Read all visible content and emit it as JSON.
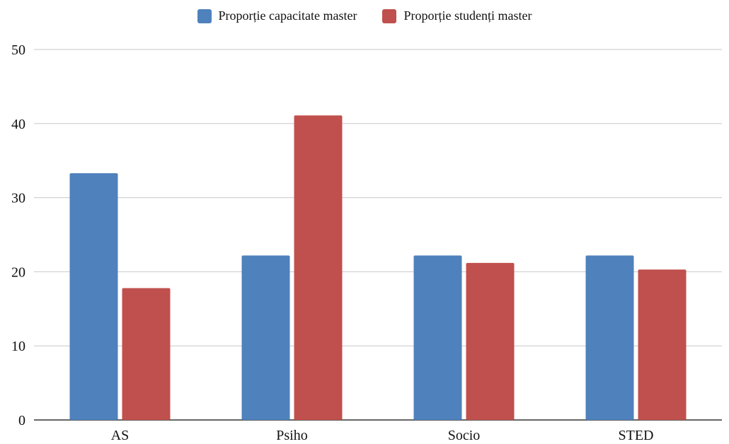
{
  "chart_data": {
    "type": "bar",
    "categories": [
      "AS",
      "Psiho",
      "Socio",
      "STED"
    ],
    "series": [
      {
        "name": "Proporție  capacitate master",
        "color": "#4f81bd",
        "values": [
          33.3,
          22.2,
          22.2,
          22.2
        ]
      },
      {
        "name": "Proporție studenți master",
        "color": "#c0504d",
        "values": [
          17.8,
          41.1,
          21.2,
          20.3
        ]
      }
    ],
    "ylim": [
      0,
      50
    ],
    "yticks": [
      "0",
      "10",
      "20",
      "30",
      "40",
      "50"
    ],
    "grid": true,
    "legend_position": "top-center"
  }
}
